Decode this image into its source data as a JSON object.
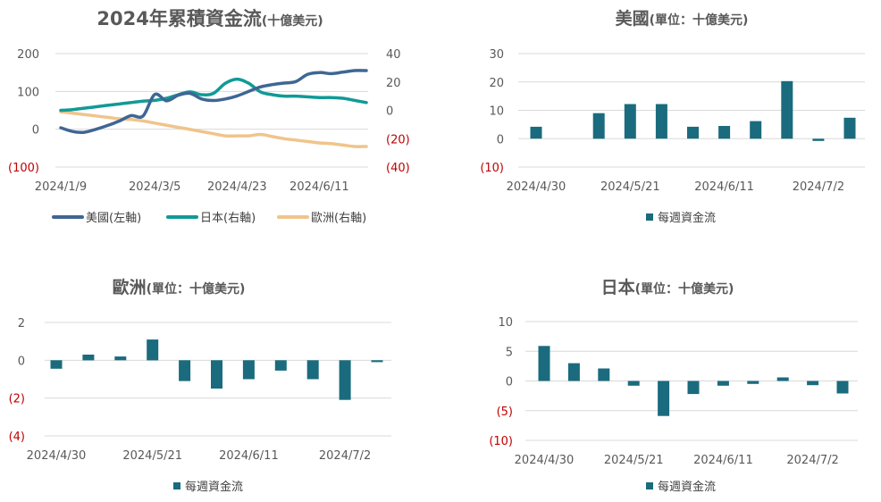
{
  "colors": {
    "us": "#3f6694",
    "japan": "#119a96",
    "europe": "#f0c48c",
    "bar": "#1a6b7d",
    "negative_tick": "#c00000",
    "text": "#595959"
  },
  "chart_data": [
    {
      "id": "cumulative",
      "type": "line",
      "title": "2024年累積資金流",
      "title_suffix": "(十億美元)",
      "x_tick_labels": [
        "2024/1/9",
        "2024/3/5",
        "2024/4/23",
        "2024/6/11"
      ],
      "y_left": {
        "ticks": [
          200,
          100,
          0,
          -100
        ],
        "tick_labels": [
          "200",
          "100",
          "0",
          "(100)"
        ],
        "ylim": [
          -100,
          200
        ]
      },
      "y_right": {
        "ticks": [
          40,
          20,
          0,
          -20,
          -40
        ],
        "tick_labels": [
          "40",
          "20",
          "0",
          "(20)",
          "(40)"
        ],
        "ylim": [
          -40,
          40
        ]
      },
      "x": [
        "2024/1/9",
        "2024/1/16",
        "2024/1/23",
        "2024/1/30",
        "2024/2/6",
        "2024/2/13",
        "2024/2/20",
        "2024/2/27",
        "2024/3/5",
        "2024/3/12",
        "2024/3/19",
        "2024/3/26",
        "2024/4/2",
        "2024/4/9",
        "2024/4/16",
        "2024/4/23",
        "2024/4/30",
        "2024/5/7",
        "2024/5/14",
        "2024/5/21",
        "2024/5/28",
        "2024/6/4",
        "2024/6/11",
        "2024/6/18",
        "2024/6/25",
        "2024/7/2",
        "2024/7/9"
      ],
      "series": [
        {
          "name": "美國(左軸)",
          "axis": "left",
          "color_key": "us",
          "values": [
            4,
            -6,
            -8,
            0,
            10,
            22,
            36,
            35,
            92,
            75,
            90,
            95,
            80,
            76,
            80,
            88,
            100,
            112,
            118,
            122,
            126,
            145,
            150,
            147,
            151,
            155,
            155
          ]
        },
        {
          "name": "日本(右軸)",
          "axis": "right",
          "color_key": "japan",
          "values": [
            0,
            0.5,
            1.5,
            2.5,
            3.5,
            4.5,
            5.5,
            6.5,
            7,
            8.5,
            11,
            13,
            11,
            12,
            19,
            22,
            19,
            13,
            11,
            10,
            10,
            9.5,
            9,
            9,
            8.5,
            7,
            5.5
          ]
        },
        {
          "name": "歐洲(右軸)",
          "axis": "right",
          "color_key": "europe",
          "values": [
            -1,
            -2,
            -3,
            -4,
            -5,
            -6,
            -6.5,
            -7.5,
            -9,
            -10.5,
            -12,
            -13.5,
            -15,
            -16.5,
            -18,
            -18,
            -18,
            -17,
            -18.5,
            -20,
            -21,
            -22,
            -23,
            -23.5,
            -24.5,
            -25.5,
            -25.5
          ]
        }
      ]
    },
    {
      "id": "us",
      "type": "bar",
      "title": "美國",
      "title_suffix": "(單位：十億美元)",
      "x_tick_labels": [
        "2024/4/30",
        "2024/5/21",
        "2024/6/11",
        "2024/7/2"
      ],
      "y": {
        "ticks": [
          30,
          20,
          10,
          0,
          -10
        ],
        "tick_labels": [
          "30",
          "20",
          "10",
          "0",
          "(10)"
        ],
        "ylim": [
          -10,
          30
        ]
      },
      "legend": "每週資金流",
      "values": [
        4.2,
        0,
        9,
        12.2,
        12.2,
        4.2,
        4.5,
        6.2,
        20.3,
        -0.8,
        7.4
      ]
    },
    {
      "id": "europe",
      "type": "bar",
      "title": "歐洲",
      "title_suffix": "(單位：十億美元)",
      "x_tick_labels": [
        "2024/4/30",
        "2024/5/21",
        "2024/6/11",
        "2024/7/2"
      ],
      "y": {
        "ticks": [
          2,
          0,
          -2,
          -4
        ],
        "tick_labels": [
          "2",
          "0",
          "(2)",
          "(4)"
        ],
        "ylim": [
          -4,
          2
        ]
      },
      "legend": "每週資金流",
      "values": [
        -0.45,
        0.3,
        0.2,
        1.1,
        -1.1,
        -1.5,
        -1.0,
        -0.55,
        -1.0,
        -2.1,
        -0.1
      ]
    },
    {
      "id": "japan",
      "type": "bar",
      "title": "日本",
      "title_suffix": "(單位：十億美元)",
      "x_tick_labels": [
        "2024/4/30",
        "2024/5/21",
        "2024/6/11",
        "2024/7/2"
      ],
      "y": {
        "ticks": [
          10,
          5,
          0,
          -5,
          -10
        ],
        "tick_labels": [
          "10",
          "5",
          "0",
          "(5)",
          "(10)"
        ],
        "ylim": [
          -10,
          10
        ]
      },
      "legend": "每週資金流",
      "values": [
        5.9,
        3.0,
        2.1,
        -0.8,
        -5.9,
        -2.2,
        -0.8,
        -0.5,
        0.6,
        -0.7,
        -2.1
      ]
    }
  ]
}
